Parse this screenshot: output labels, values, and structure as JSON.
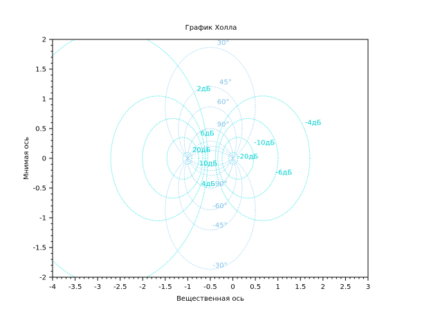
{
  "chart_data": {
    "type": "line",
    "title": "График Холла",
    "xlabel": "Вещественная ось",
    "ylabel": "Мнимая ось",
    "xlim": [
      -4,
      3
    ],
    "ylim": [
      -2,
      2
    ],
    "xticks": [
      "-4",
      "-3.5",
      "-3",
      "-2.5",
      "-2",
      "-1.5",
      "-1",
      "-0.5",
      "0",
      "0.5",
      "1",
      "1.5",
      "2",
      "2.5",
      "3"
    ],
    "yticks": [
      "-2",
      "-1.5",
      "-1",
      "-0.5",
      "0",
      "0.5",
      "1",
      "1.5",
      "2"
    ],
    "grid": "Hall chart (M and N circles)",
    "colors": {
      "magnitude": "#00e0e0",
      "phase": "#80c8f0",
      "frame": "#000000"
    },
    "magnitude_circles_db": [
      -20,
      -10,
      -6,
      -4,
      2,
      4,
      6,
      10,
      20
    ],
    "phase_circles_deg": [
      -90,
      -60,
      -45,
      -30,
      30,
      45,
      60,
      90
    ],
    "labels": [
      {
        "text": "30°",
        "x": -0.35,
        "y": 1.94,
        "kind": "phase"
      },
      {
        "text": "45°",
        "x": -0.3,
        "y": 1.28,
        "kind": "phase"
      },
      {
        "text": "60°",
        "x": -0.35,
        "y": 0.95,
        "kind": "phase"
      },
      {
        "text": "90°",
        "x": -0.35,
        "y": 0.57,
        "kind": "phase"
      },
      {
        "text": "2дБ",
        "x": -0.8,
        "y": 1.17,
        "kind": "magnitude"
      },
      {
        "text": "6дБ",
        "x": -0.72,
        "y": 0.42,
        "kind": "magnitude"
      },
      {
        "text": "20дБ",
        "x": -0.9,
        "y": 0.14,
        "kind": "magnitude"
      },
      {
        "text": "10дБ",
        "x": -0.75,
        "y": -0.09,
        "kind": "magnitude"
      },
      {
        "text": "4дБ",
        "x": -0.7,
        "y": -0.43,
        "kind": "magnitude"
      },
      {
        "text": "-90°",
        "x": -0.45,
        "y": -0.43,
        "kind": "phase"
      },
      {
        "text": "-10дБ",
        "x": 0.47,
        "y": 0.26,
        "kind": "magnitude"
      },
      {
        "text": "-20дБ",
        "x": 0.1,
        "y": 0.03,
        "kind": "magnitude"
      },
      {
        "text": "-4дБ",
        "x": 1.6,
        "y": 0.6,
        "kind": "magnitude"
      },
      {
        "text": "-6дБ",
        "x": 0.95,
        "y": -0.24,
        "kind": "magnitude"
      },
      {
        "text": "-60°",
        "x": -0.45,
        "y": -0.8,
        "kind": "phase"
      },
      {
        "text": "-45°",
        "x": -0.45,
        "y": -1.13,
        "kind": "phase"
      },
      {
        "text": "-30°",
        "x": -0.45,
        "y": -1.8,
        "kind": "phase"
      }
    ]
  }
}
